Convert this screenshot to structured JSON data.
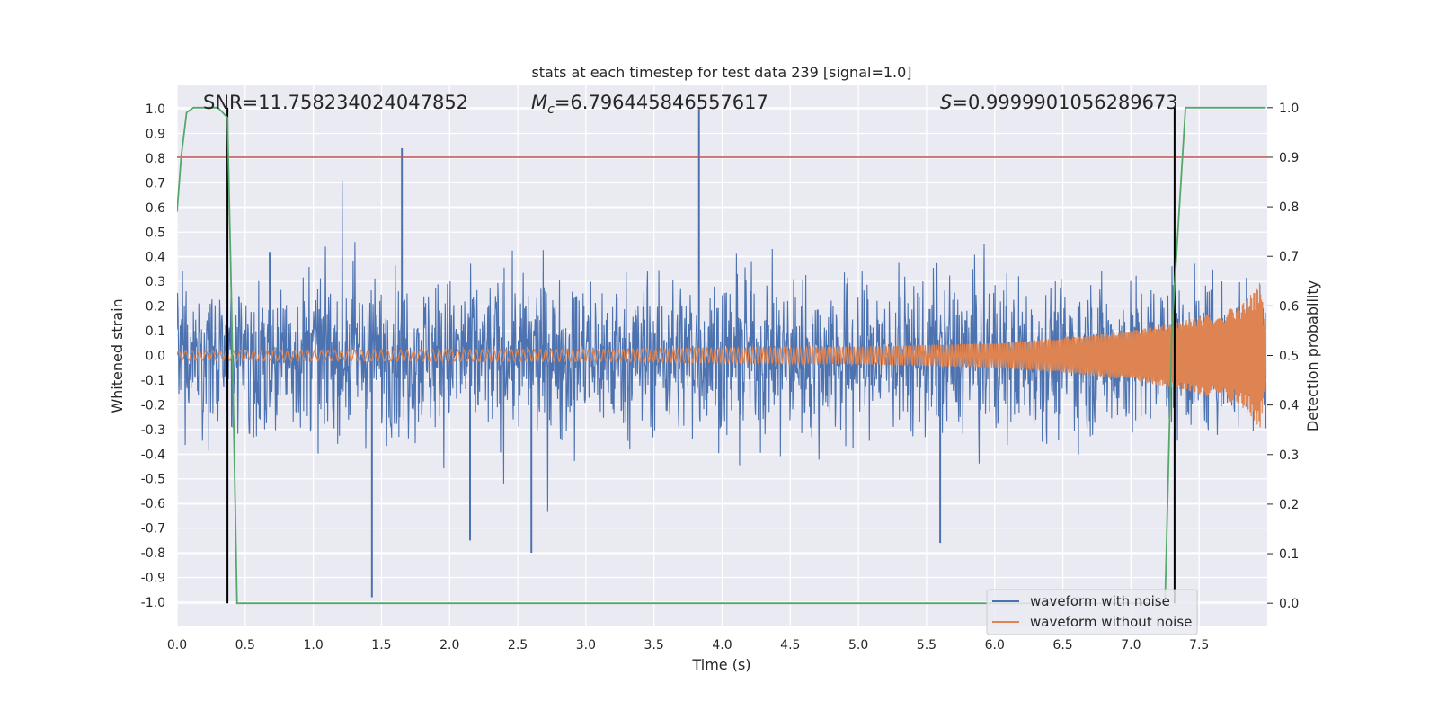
{
  "chart_data": {
    "type": "line",
    "title": "stats at each timestep for test data 239 [signal=1.0]",
    "xlabel": "Time (s)",
    "ylabel": "Whitened strain",
    "ylabel_right": "Detection probability",
    "xlim": [
      0.0,
      8.0
    ],
    "ylim": [
      -1.095,
      1.095
    ],
    "ylim_right": [
      -0.045,
      1.045
    ],
    "x_ticks": [
      "0.0",
      "0.5",
      "1.0",
      "1.5",
      "2.0",
      "2.5",
      "3.0",
      "3.5",
      "4.0",
      "4.5",
      "5.0",
      "5.5",
      "6.0",
      "6.5",
      "7.0",
      "7.5"
    ],
    "x_tick_values": [
      0.0,
      0.5,
      1.0,
      1.5,
      2.0,
      2.5,
      3.0,
      3.5,
      4.0,
      4.5,
      5.0,
      5.5,
      6.0,
      6.5,
      7.0,
      7.5
    ],
    "y_ticks": [
      "1.0",
      "0.9",
      "0.8",
      "0.7",
      "0.6",
      "0.5",
      "0.4",
      "0.3",
      "0.2",
      "0.1",
      "0.0",
      "-0.1",
      "-0.2",
      "-0.3",
      "-0.4",
      "-0.5",
      "-0.6",
      "-0.7",
      "-0.8",
      "-0.9",
      "-1.0"
    ],
    "y_tick_values": [
      1.0,
      0.9,
      0.8,
      0.7,
      0.6,
      0.5,
      0.4,
      0.3,
      0.2,
      0.1,
      0.0,
      -0.1,
      -0.2,
      -0.3,
      -0.4,
      -0.5,
      -0.6,
      -0.7,
      -0.8,
      -0.9,
      -1.0
    ],
    "y_ticks_right": [
      "1.0",
      "0.9",
      "0.8",
      "0.7",
      "0.6",
      "0.5",
      "0.4",
      "0.3",
      "0.2",
      "0.1",
      "0.0"
    ],
    "y_tick_values_right": [
      1.0,
      0.9,
      0.8,
      0.7,
      0.6,
      0.5,
      0.4,
      0.3,
      0.2,
      0.1,
      0.0
    ],
    "annotations": {
      "snr": "SNR=11.758234024047852",
      "mc_symbol": "M",
      "mc_sub": "c",
      "mc_value": "=6.796445846557617",
      "s_symbol": "S",
      "s_value": "=0.9999901056289673"
    },
    "threshold_right": 0.9,
    "vlines_x": [
      0.37,
      7.32
    ],
    "noise_series": {
      "name": "waveform with noise",
      "t_start": 0.0,
      "t_end": 7.99,
      "typical_abs_amplitude": 0.35,
      "max": 1.0,
      "min": -0.98,
      "notable_spikes": [
        [
          0.68,
          0.42
        ],
        [
          1.65,
          0.84
        ],
        [
          3.83,
          1.0
        ],
        [
          1.43,
          -0.98
        ],
        [
          2.6,
          -0.8
        ],
        [
          2.15,
          -0.75
        ],
        [
          5.6,
          -0.76
        ]
      ]
    },
    "clean_series": {
      "name": "waveform without noise",
      "t_start": 0.0,
      "t_end": 7.99,
      "envelope": [
        [
          0.0,
          0.02
        ],
        [
          3.0,
          0.025
        ],
        [
          5.0,
          0.035
        ],
        [
          6.0,
          0.05
        ],
        [
          6.5,
          0.07
        ],
        [
          7.0,
          0.1
        ],
        [
          7.3,
          0.13
        ],
        [
          7.6,
          0.17
        ],
        [
          7.8,
          0.2
        ],
        [
          7.9,
          0.26
        ],
        [
          7.95,
          0.3
        ],
        [
          7.99,
          0.1
        ]
      ]
    },
    "detection_probability": {
      "name": "detection probability",
      "points": [
        [
          0.0,
          0.79
        ],
        [
          0.03,
          0.9
        ],
        [
          0.07,
          0.99
        ],
        [
          0.12,
          1.0
        ],
        [
          0.3,
          1.0
        ],
        [
          0.37,
          0.98
        ],
        [
          0.4,
          0.6
        ],
        [
          0.44,
          0.0
        ],
        [
          7.25,
          0.0
        ],
        [
          7.3,
          0.55
        ],
        [
          7.4,
          1.0
        ],
        [
          7.99,
          1.0
        ]
      ]
    },
    "legend": [
      "waveform with noise",
      "waveform without noise"
    ],
    "legend_location": "lower right",
    "colors": {
      "noise": "#4c72b0",
      "clean": "#dd8452",
      "probability": "#55a868",
      "threshold": "#c44e52",
      "vline": "#000000",
      "axes_bg": "#eaeaf2",
      "grid": "#ffffff"
    }
  }
}
